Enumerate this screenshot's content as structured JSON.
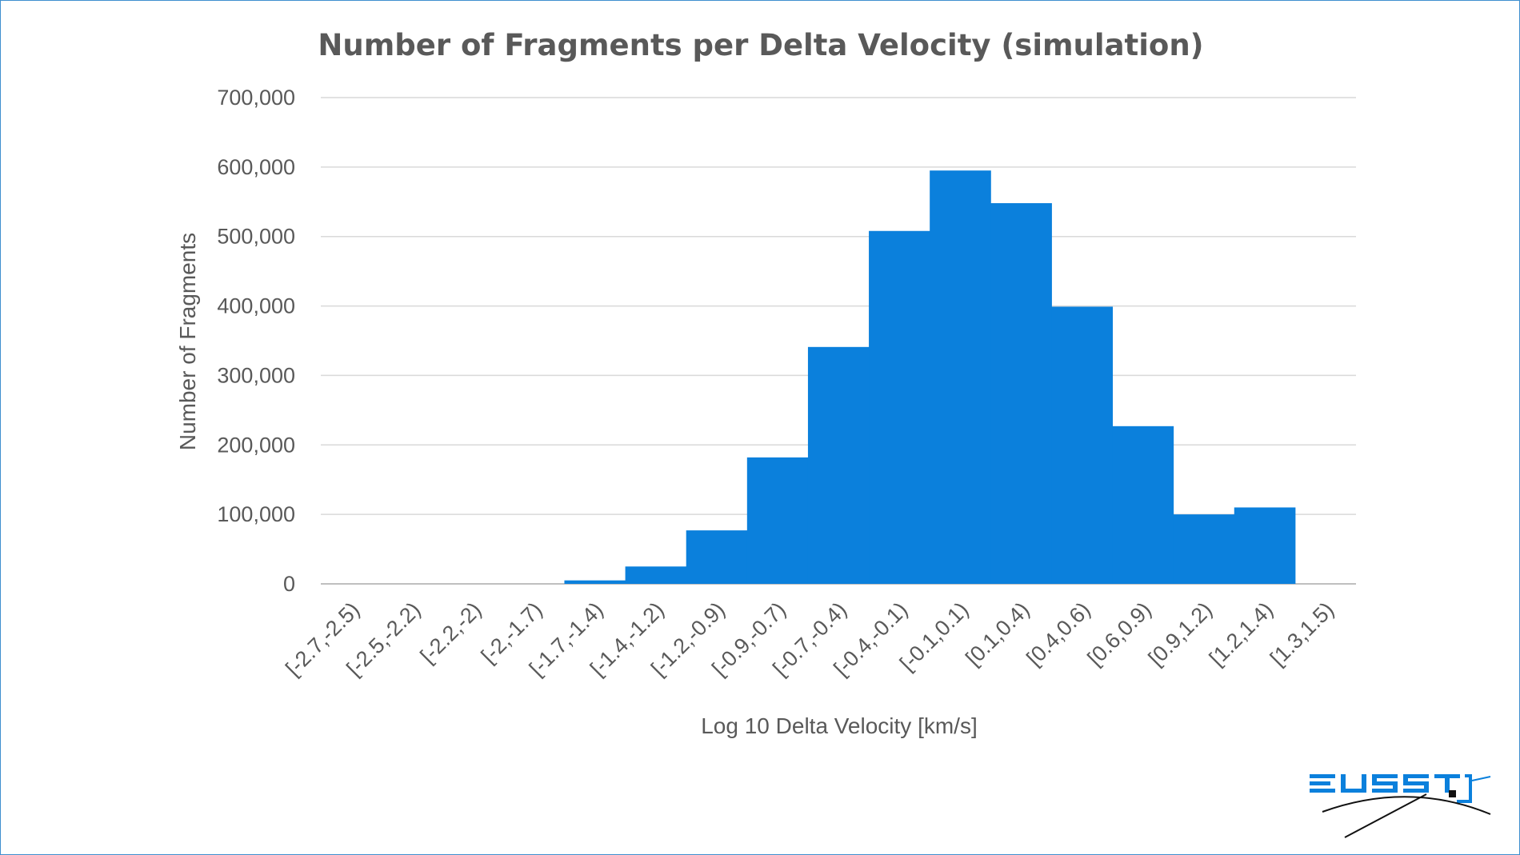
{
  "chart_data": {
    "type": "bar",
    "title": "Number of Fragments per Delta Velocity (simulation)",
    "xlabel": "Log 10 Delta Velocity [km/s]",
    "ylabel": "Number of Fragments",
    "ylim": [
      0,
      700000
    ],
    "yticks": [
      "0",
      "100,000",
      "200,000",
      "300,000",
      "400,000",
      "500,000",
      "600,000",
      "700,000"
    ],
    "categories": [
      "[-2.7,-2.5)",
      "[-2.5,-2.2)",
      "[-2.2,-2)",
      "[-2,-1.7)",
      "[-1.7,-1.4)",
      "[-1.4,-1.2)",
      "[-1.2,-0.9)",
      "[-0.9,-0.7)",
      "[-0.7,-0.4)",
      "[-0.4,-0.1)",
      "[-0.1,0.1)",
      "[0.1,0.4)",
      "[0.4,0.6)",
      "[0.6,0.9)",
      "[0.9,1.2)",
      "[1.2,1.4)",
      "[1.3,1.5)"
    ],
    "values": [
      0,
      0,
      0,
      0,
      5000,
      25000,
      77000,
      182000,
      341000,
      508000,
      595000,
      548000,
      399000,
      227000,
      100000,
      110000,
      0
    ],
    "bar_color": "#0b80dc",
    "gap": "none",
    "grid": true,
    "legend": "none"
  },
  "logo": {
    "text": "EUSST",
    "color": "#0b80dc"
  }
}
